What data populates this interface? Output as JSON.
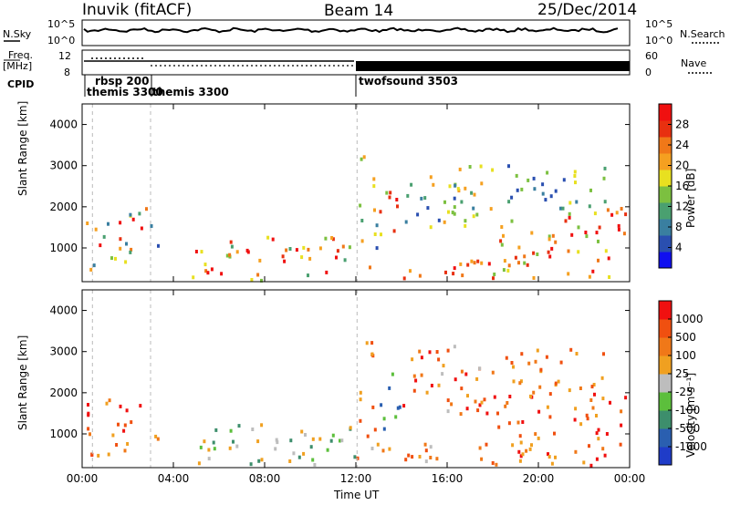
{
  "header": {
    "station": "Inuvik (fitACF)",
    "beam": "Beam 14",
    "date": "25/Dec/2014"
  },
  "sky_panel": {
    "left_label": "N.Sky",
    "left_ticks": [
      "10^5",
      "10^0"
    ],
    "right_ticks": [
      "10^5",
      "10^0"
    ],
    "right_label": "N.Search"
  },
  "freq_panel": {
    "left_label_1": "Freq.",
    "left_label_2": "[MHz]",
    "left_ticks": [
      "12",
      "8"
    ],
    "right_ticks": [
      "60",
      "0"
    ],
    "right_label": "Nave"
  },
  "cpid": {
    "label": "CPID",
    "modes": [
      "rbsp 200",
      "themis 3300",
      "themis 3300",
      "twofsound 3503"
    ]
  },
  "chart_data": [
    {
      "type": "heatmap",
      "title": "",
      "ylabel": "Slant Range [km]",
      "yticks": [
        "1000",
        "2000",
        "3000",
        "4000"
      ],
      "ylim": [
        180,
        4500
      ],
      "xlim": [
        0,
        24
      ],
      "colorbar": {
        "label": "Power [dB]",
        "ticks": [
          "4",
          "8",
          "12",
          "16",
          "20",
          "24",
          "28"
        ],
        "colors": [
          "#1010f0",
          "#2a4fb0",
          "#3a7fa0",
          "#4aa070",
          "#7cc040",
          "#e8e020",
          "#f5a020",
          "#f07818",
          "#e83010",
          "#f01010"
        ]
      }
    },
    {
      "type": "heatmap",
      "title": "",
      "ylabel": "Slant Range [km]",
      "yticks": [
        "1000",
        "2000",
        "3000",
        "4000"
      ],
      "ylim": [
        180,
        4500
      ],
      "xlim": [
        0,
        24
      ],
      "xticks": [
        "00:00",
        "04:00",
        "08:00",
        "12:00",
        "16:00",
        "20:00",
        "00:00"
      ],
      "xlabel": "Time UT",
      "colorbar": {
        "label": "Velocity [m s⁻¹]",
        "ticks": [
          "1000",
          "500",
          "100",
          "25",
          "-25",
          "-100",
          "-500",
          "-1000"
        ],
        "colors": [
          "#1f3cc8",
          "#2a5fb0",
          "#3d8e6c",
          "#5cbf3c",
          "#bdbdbd",
          "#f0a020",
          "#f07818",
          "#f05010",
          "#f01010"
        ]
      }
    }
  ]
}
